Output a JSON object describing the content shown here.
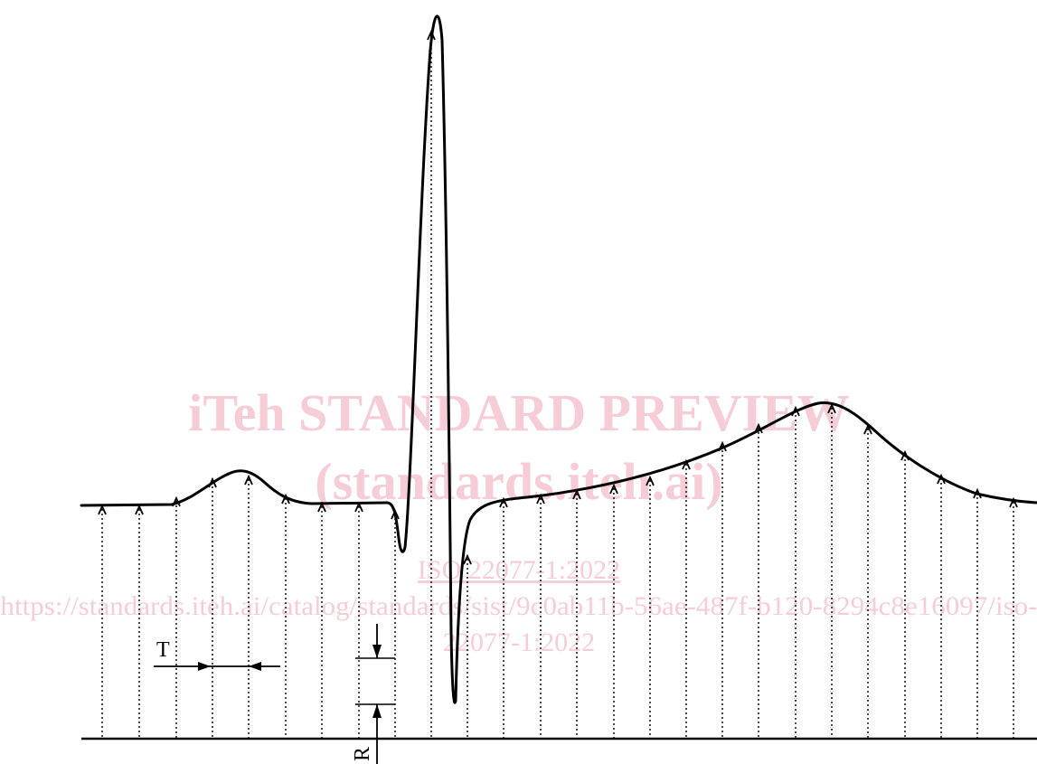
{
  "labels": {
    "T": "T",
    "R": "R"
  },
  "watermark": {
    "line1": "iTeh STANDARD PREVIEW",
    "line2": "(standards.iteh.ai)",
    "line3": "ISO 22077-1:2022",
    "line4": "https://standards.iteh.ai/catalog/standards/sist/9c0ab11b-56ae-487f-b120-8294c8e16097/iso-",
    "line5": "22077-1:2022",
    "color": "#f6cdd6"
  },
  "colors": {
    "line": "#000000"
  }
}
